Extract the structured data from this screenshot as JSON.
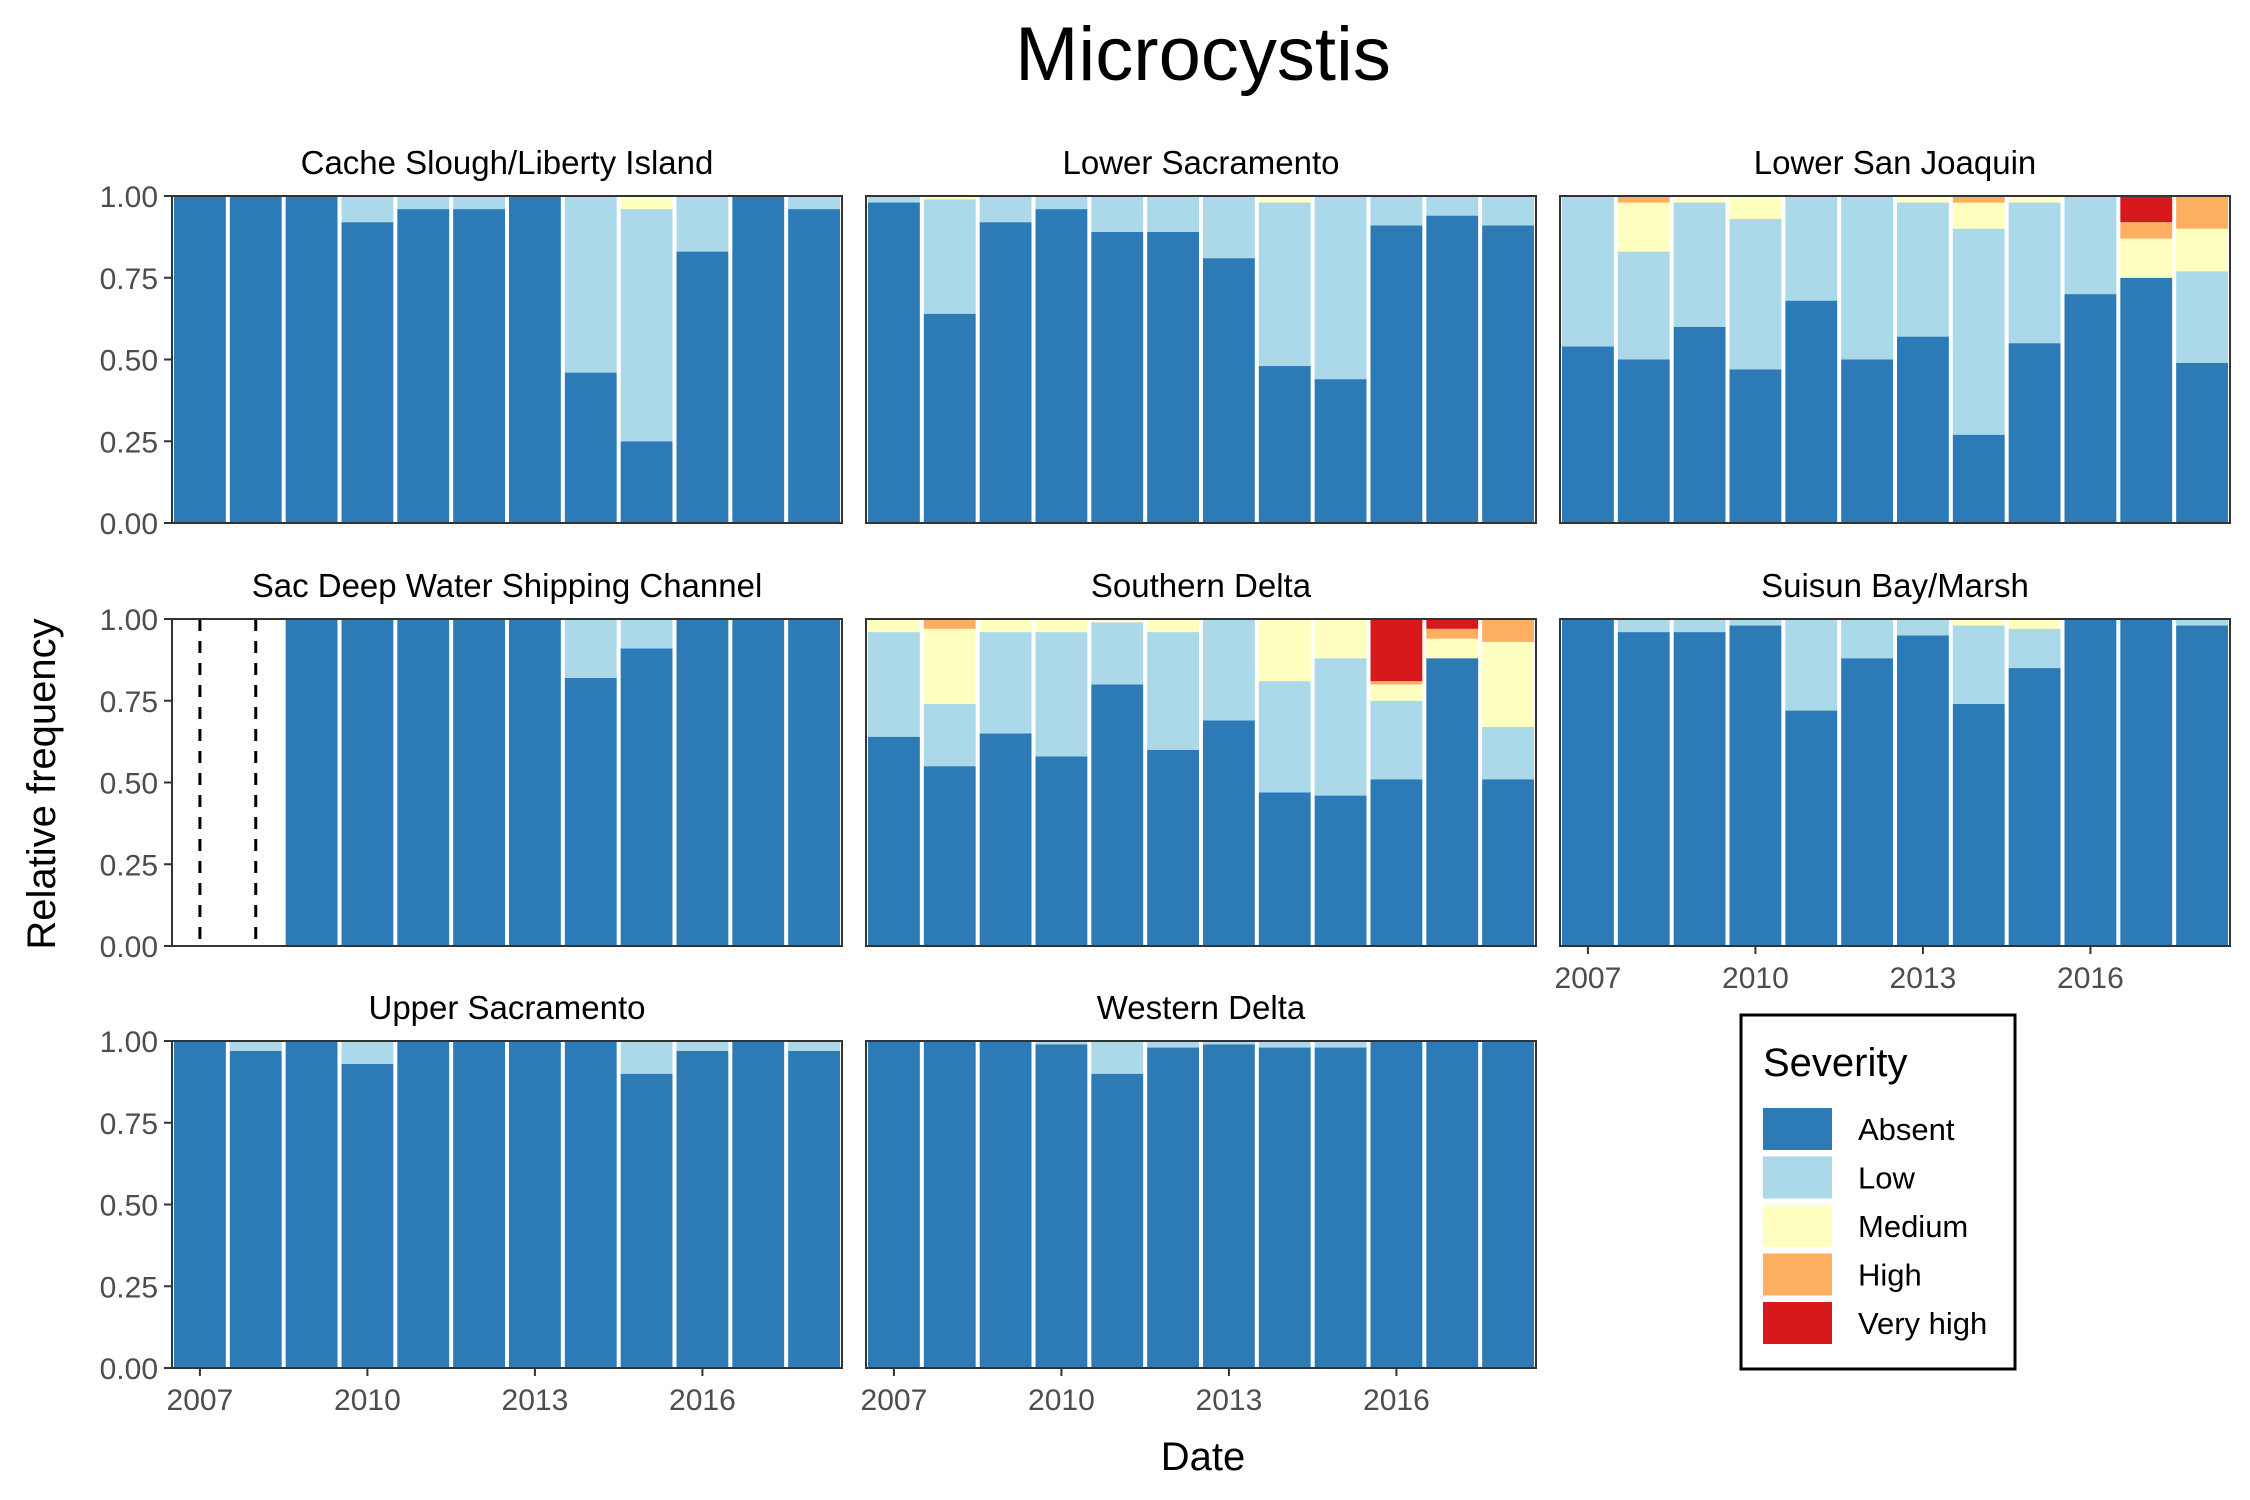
{
  "chart_data": {
    "type": "bar",
    "stacked": true,
    "faceted": true,
    "title": "Microcystis",
    "xlabel": "Date",
    "ylabel": "Relative frequency",
    "ylim": [
      0,
      1
    ],
    "y_ticks": [
      "0.00",
      "0.25",
      "0.50",
      "0.75",
      "1.00"
    ],
    "x_ticks": [
      "2007",
      "2010",
      "2013",
      "2016"
    ],
    "x_tick_years": [
      2007,
      2010,
      2013,
      2016
    ],
    "years": [
      2007,
      2008,
      2009,
      2010,
      2011,
      2012,
      2013,
      2014,
      2015,
      2016,
      2017,
      2018
    ],
    "legend": {
      "title": "Severity",
      "placement": "bottom-right",
      "entries": [
        "Absent",
        "Low",
        "Medium",
        "High",
        "Very high"
      ]
    },
    "colors": [
      "#2c7bb6",
      "#abd9e9",
      "#ffffbf",
      "#fdae61",
      "#d7191c"
    ],
    "facets": [
      {
        "name": "Cache Slough/Liberty Island",
        "values": [
          [
            1.0,
            0,
            0,
            0,
            0
          ],
          [
            1.0,
            0,
            0,
            0,
            0
          ],
          [
            1.0,
            0,
            0,
            0,
            0
          ],
          [
            0.92,
            0.08,
            0,
            0,
            0
          ],
          [
            0.96,
            0.04,
            0,
            0,
            0
          ],
          [
            0.96,
            0.04,
            0,
            0,
            0
          ],
          [
            1.0,
            0,
            0,
            0,
            0
          ],
          [
            0.46,
            0.54,
            0,
            0,
            0
          ],
          [
            0.25,
            0.71,
            0.04,
            0,
            0
          ],
          [
            0.83,
            0.17,
            0,
            0,
            0
          ],
          [
            1.0,
            0,
            0,
            0,
            0
          ],
          [
            0.96,
            0.04,
            0,
            0,
            0
          ]
        ]
      },
      {
        "name": "Lower Sacramento",
        "values": [
          [
            0.98,
            0.02,
            0,
            0,
            0
          ],
          [
            0.64,
            0.35,
            0.01,
            0,
            0
          ],
          [
            0.92,
            0.08,
            0,
            0,
            0
          ],
          [
            0.96,
            0.04,
            0,
            0,
            0
          ],
          [
            0.89,
            0.11,
            0,
            0,
            0
          ],
          [
            0.89,
            0.11,
            0,
            0,
            0
          ],
          [
            0.81,
            0.19,
            0,
            0,
            0
          ],
          [
            0.48,
            0.5,
            0.02,
            0,
            0
          ],
          [
            0.44,
            0.56,
            0,
            0,
            0
          ],
          [
            0.91,
            0.09,
            0,
            0,
            0
          ],
          [
            0.94,
            0.06,
            0,
            0,
            0
          ],
          [
            0.91,
            0.09,
            0,
            0,
            0
          ]
        ]
      },
      {
        "name": "Lower San Joaquin",
        "values": [
          [
            0.54,
            0.46,
            0,
            0,
            0
          ],
          [
            0.5,
            0.33,
            0.15,
            0.02,
            0
          ],
          [
            0.6,
            0.38,
            0.02,
            0,
            0
          ],
          [
            0.47,
            0.46,
            0.07,
            0,
            0
          ],
          [
            0.68,
            0.32,
            0,
            0,
            0
          ],
          [
            0.5,
            0.5,
            0,
            0,
            0
          ],
          [
            0.57,
            0.41,
            0.02,
            0,
            0
          ],
          [
            0.27,
            0.63,
            0.08,
            0.02,
            0
          ],
          [
            0.55,
            0.43,
            0.02,
            0,
            0
          ],
          [
            0.7,
            0.3,
            0,
            0,
            0
          ],
          [
            0.75,
            0,
            0.12,
            0.05,
            0.08
          ],
          [
            0.49,
            0.28,
            0.13,
            0.1,
            0
          ]
        ]
      },
      {
        "name": "Sac Deep Water Shipping Channel",
        "missing_years": [
          2007,
          2008
        ],
        "values": [
          null,
          null,
          [
            1.0,
            0,
            0,
            0,
            0
          ],
          [
            1.0,
            0,
            0,
            0,
            0
          ],
          [
            1.0,
            0,
            0,
            0,
            0
          ],
          [
            1.0,
            0,
            0,
            0,
            0
          ],
          [
            1.0,
            0,
            0,
            0,
            0
          ],
          [
            0.82,
            0.18,
            0,
            0,
            0
          ],
          [
            0.91,
            0.09,
            0,
            0,
            0
          ],
          [
            1.0,
            0,
            0,
            0,
            0
          ],
          [
            1.0,
            0,
            0,
            0,
            0
          ],
          [
            1.0,
            0,
            0,
            0,
            0
          ]
        ]
      },
      {
        "name": "Southern Delta",
        "values": [
          [
            0.64,
            0.32,
            0.04,
            0,
            0
          ],
          [
            0.55,
            0.19,
            0.23,
            0.03,
            0
          ],
          [
            0.65,
            0.31,
            0.04,
            0,
            0
          ],
          [
            0.58,
            0.38,
            0.04,
            0,
            0
          ],
          [
            0.8,
            0.19,
            0.01,
            0,
            0
          ],
          [
            0.6,
            0.36,
            0.04,
            0,
            0
          ],
          [
            0.69,
            0.31,
            0,
            0,
            0
          ],
          [
            0.47,
            0.34,
            0.19,
            0,
            0
          ],
          [
            0.46,
            0.42,
            0.12,
            0,
            0
          ],
          [
            0.51,
            0.24,
            0.05,
            0.01,
            0.19
          ],
          [
            0.88,
            0,
            0.06,
            0.03,
            0.03
          ],
          [
            0.51,
            0.16,
            0.26,
            0.07,
            0
          ]
        ]
      },
      {
        "name": "Suisun Bay/Marsh",
        "values": [
          [
            1.0,
            0,
            0,
            0,
            0
          ],
          [
            0.96,
            0.04,
            0,
            0,
            0
          ],
          [
            0.96,
            0.04,
            0,
            0,
            0
          ],
          [
            0.98,
            0.02,
            0,
            0,
            0
          ],
          [
            0.72,
            0.28,
            0,
            0,
            0
          ],
          [
            0.88,
            0.12,
            0,
            0,
            0
          ],
          [
            0.95,
            0.05,
            0,
            0,
            0
          ],
          [
            0.74,
            0.24,
            0.02,
            0,
            0
          ],
          [
            0.85,
            0.12,
            0.03,
            0,
            0
          ],
          [
            1.0,
            0,
            0,
            0,
            0
          ],
          [
            1.0,
            0,
            0,
            0,
            0
          ],
          [
            0.98,
            0.02,
            0,
            0,
            0
          ]
        ]
      },
      {
        "name": "Upper Sacramento",
        "values": [
          [
            1.0,
            0,
            0,
            0,
            0
          ],
          [
            0.97,
            0.03,
            0,
            0,
            0
          ],
          [
            1.0,
            0,
            0,
            0,
            0
          ],
          [
            0.93,
            0.07,
            0,
            0,
            0
          ],
          [
            1.0,
            0,
            0,
            0,
            0
          ],
          [
            1.0,
            0,
            0,
            0,
            0
          ],
          [
            1.0,
            0,
            0,
            0,
            0
          ],
          [
            1.0,
            0,
            0,
            0,
            0
          ],
          [
            0.9,
            0.1,
            0,
            0,
            0
          ],
          [
            0.97,
            0.03,
            0,
            0,
            0
          ],
          [
            1.0,
            0,
            0,
            0,
            0
          ],
          [
            0.97,
            0.03,
            0,
            0,
            0
          ]
        ]
      },
      {
        "name": "Western Delta",
        "values": [
          [
            1.0,
            0,
            0,
            0,
            0
          ],
          [
            1.0,
            0,
            0,
            0,
            0
          ],
          [
            1.0,
            0,
            0,
            0,
            0
          ],
          [
            0.99,
            0.01,
            0,
            0,
            0
          ],
          [
            0.9,
            0.1,
            0,
            0,
            0
          ],
          [
            0.98,
            0.02,
            0,
            0,
            0
          ],
          [
            0.99,
            0.01,
            0,
            0,
            0
          ],
          [
            0.98,
            0.02,
            0,
            0,
            0
          ],
          [
            0.98,
            0.02,
            0,
            0,
            0
          ],
          [
            1.0,
            0,
            0,
            0,
            0
          ],
          [
            1.0,
            0,
            0,
            0,
            0
          ],
          [
            1.0,
            0,
            0,
            0,
            0
          ]
        ]
      }
    ]
  }
}
